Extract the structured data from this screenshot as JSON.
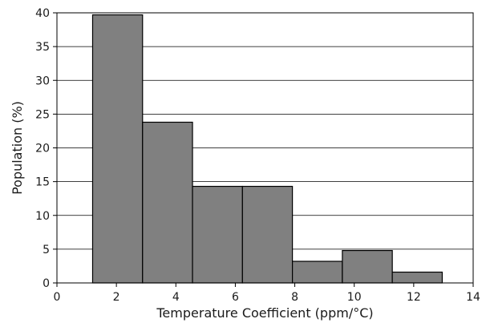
{
  "chart_data": {
    "type": "bar",
    "xlabel": "Temperature Coefficient (ppm/°C)",
    "ylabel": "Population (%)",
    "xlim": [
      0,
      14
    ],
    "ylim": [
      0,
      40
    ],
    "xticks": [
      "0",
      "2",
      "4",
      "6",
      "8",
      "10",
      "12",
      "14"
    ],
    "yticks": [
      "0",
      "5",
      "10",
      "15",
      "20",
      "25",
      "30",
      "35",
      "40"
    ],
    "grid": "horizontal",
    "legend": "none",
    "bar_color": "#808080",
    "bin_edges": [
      1.2,
      2.88,
      4.56,
      6.24,
      7.92,
      9.6,
      11.28,
      12.96
    ],
    "values": [
      39.7,
      23.8,
      14.3,
      14.3,
      3.2,
      4.8,
      1.6
    ]
  }
}
